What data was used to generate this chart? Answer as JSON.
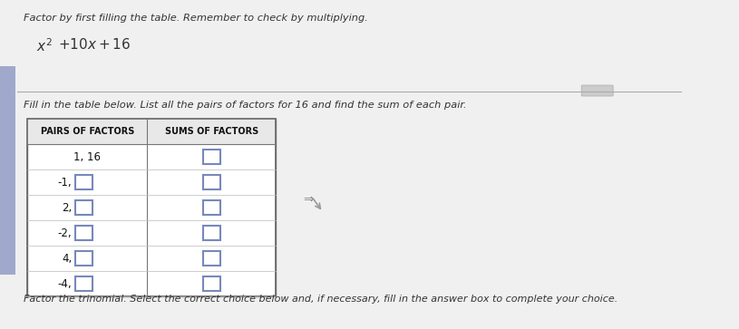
{
  "title_line1": "Factor by first filling the table. Remember to check by multiplying.",
  "expression": "x^2 + 10x + 16",
  "instruction": "Fill in the table below. List all the pairs of factors for 16 and find the sum of each pair.",
  "col1_header": "PAIRS OF FACTORS",
  "col2_header": "SUMS OF FACTORS",
  "pairs_fixed": "1, 16",
  "pairs_with_box": [
    "-1,",
    "2,",
    "-2,",
    "4,",
    "-4,"
  ],
  "footer": "Factor the trinomial. Select the correct choice below and, if necessary, fill in the answer box to complete your choice.",
  "bg_color": "#f0f0f0",
  "sidebar_color": "#a0a8cc",
  "table_bg": "#ffffff",
  "header_bg": "#e0e0e0",
  "box_color": "#7788bb",
  "text_color": "#333333",
  "title_color": "#333333",
  "scrollbar_color": "#c8c8c8",
  "separator_color": "#aaaaaa"
}
